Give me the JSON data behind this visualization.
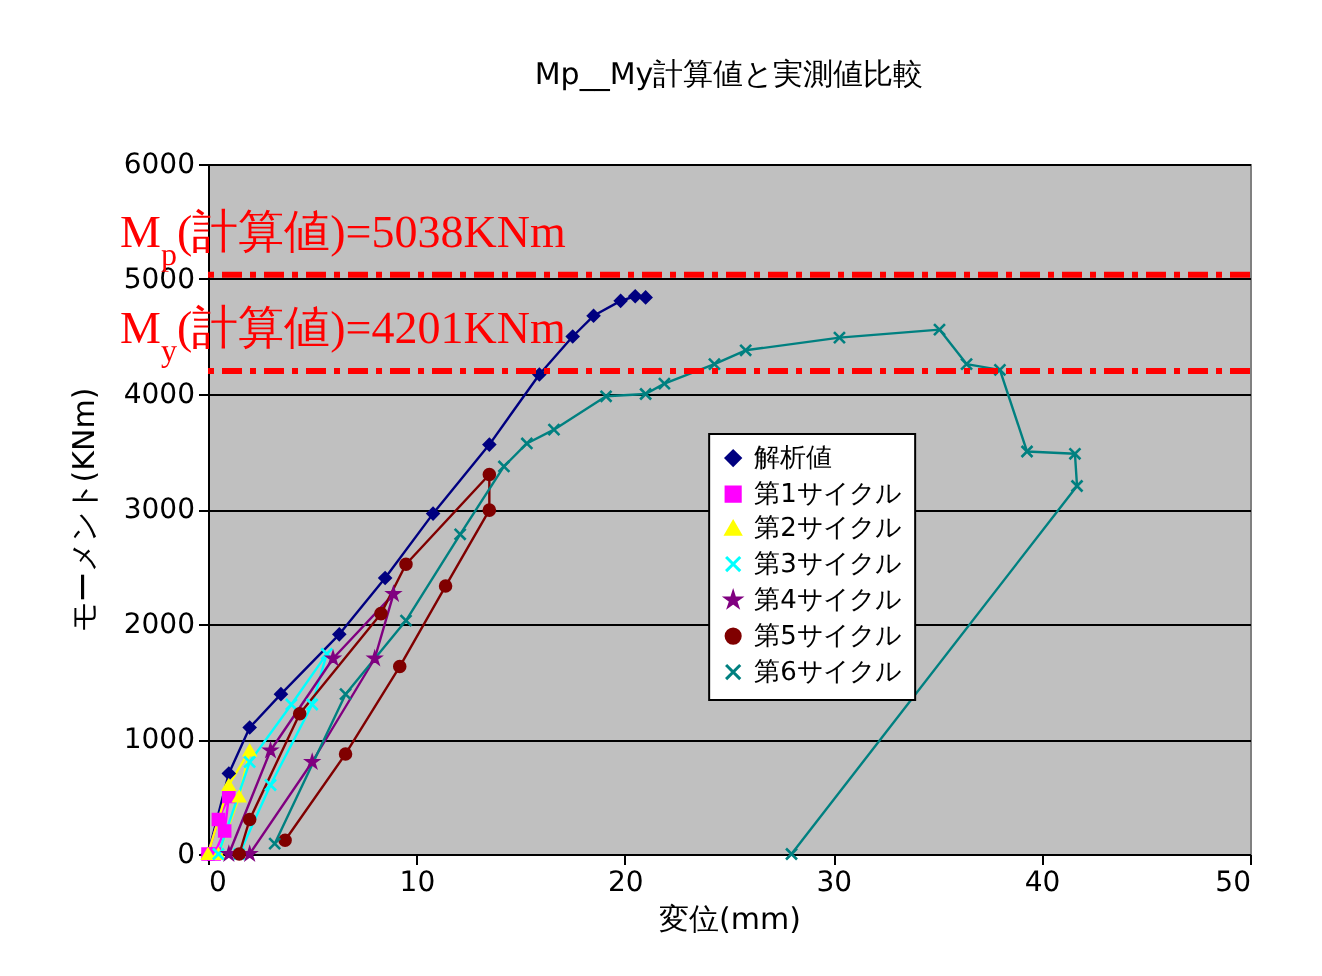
{
  "chart_data": {
    "type": "line",
    "title": "Mp__My計算値と実測値比較",
    "xlabel": "変位(mm)",
    "ylabel": "モーメント(KNm)",
    "xlim": [
      0,
      50
    ],
    "xticks": [
      0,
      10,
      20,
      30,
      40,
      50
    ],
    "ylim": [
      0,
      6000
    ],
    "yticks": [
      0,
      1000,
      2000,
      3000,
      4000,
      5000,
      6000
    ],
    "grid": "y",
    "legend": "right",
    "line_style": "solid",
    "series": [
      {
        "name": "解析値",
        "color": "#000080",
        "marker": "diamond",
        "x": [
          0,
          1,
          2,
          3.5,
          6.3,
          8.5,
          10.8,
          13.5,
          15.9,
          17.5,
          18.5,
          19.8,
          20.5,
          21
        ],
        "values": [
          0,
          700,
          1100,
          1390,
          1910,
          2400,
          2960,
          3560,
          4170,
          4500,
          4680,
          4810,
          4850,
          4840
        ]
      },
      {
        "name": "第1サイクル",
        "color": "#ff00ff",
        "marker": "square",
        "x": [
          0,
          0.5,
          1,
          0.8,
          0.3
        ],
        "values": [
          0,
          300,
          500,
          200,
          0
        ]
      },
      {
        "name": "第2サイクル",
        "color": "#ffff00",
        "marker": "triangle",
        "x": [
          0,
          1,
          2,
          1.5,
          0.5
        ],
        "values": [
          0,
          600,
          900,
          500,
          0
        ]
      },
      {
        "name": "第3サイクル",
        "color": "#00ffff",
        "marker": "cross",
        "x": [
          0.5,
          2,
          4,
          5.7,
          5,
          3,
          1.5
        ],
        "values": [
          0,
          800,
          1300,
          1740,
          1300,
          600,
          0
        ]
      },
      {
        "name": "第4サイクル",
        "color": "#800080",
        "marker": "star",
        "x": [
          1,
          3,
          6,
          8.9,
          8,
          5,
          2
        ],
        "values": [
          0,
          900,
          1700,
          2260,
          1700,
          800,
          0
        ]
      },
      {
        "name": "第5サイクル",
        "color": "#800000",
        "marker": "circle",
        "x": [
          1.5,
          2,
          4.4,
          8.3,
          9.5,
          13.5,
          13.5,
          11.4,
          9.2,
          6.6,
          3.7
        ],
        "values": [
          0,
          300,
          1220,
          2090,
          2520,
          3300,
          2990,
          2330,
          1630,
          870,
          120
        ]
      },
      {
        "name": "第6サイクル",
        "color": "#008080",
        "marker": "cross",
        "x": [
          3.2,
          6.6,
          9.5,
          12.1,
          14.2,
          15.3,
          16.6,
          19.1,
          21,
          21.9,
          24.3,
          25.8,
          30.3,
          35.1,
          36.4,
          38,
          39.3,
          41.6,
          41.7,
          28
        ],
        "values": [
          90,
          1390,
          2030,
          2780,
          3370,
          3570,
          3690,
          3980,
          4000,
          4090,
          4260,
          4380,
          4490,
          4560,
          4260,
          4210,
          3500,
          3480,
          3200,
          0
        ]
      }
    ],
    "ref_lines": [
      {
        "axis": "y",
        "value": 5038,
        "label": "M$_{p}$(計算値)=5038KNm",
        "color": "#ff0000",
        "line_style": "dashdot"
      },
      {
        "axis": "y",
        "value": 4201,
        "label": "M$_{y}$(計算値)=4201KNm",
        "color": "#ff0000",
        "line_style": "dashdot"
      }
    ]
  }
}
